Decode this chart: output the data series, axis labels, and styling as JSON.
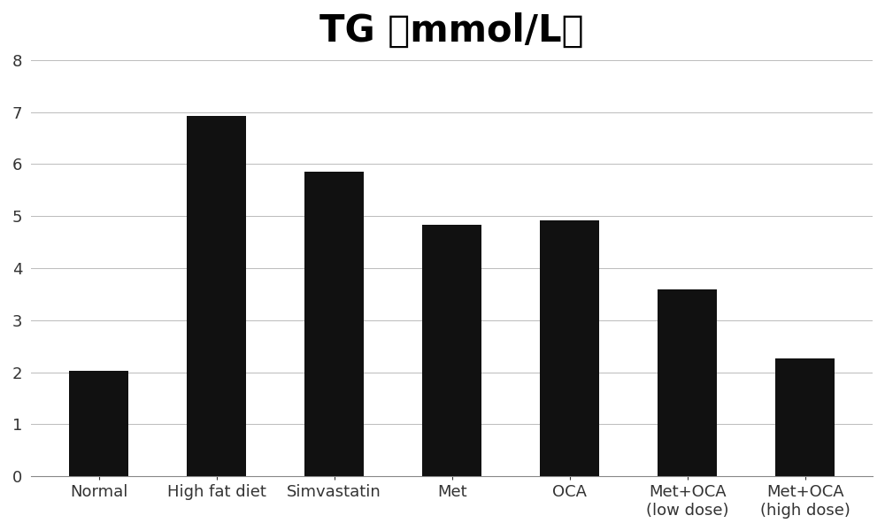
{
  "title": "TG （mmol/L）",
  "categories": [
    "Normal",
    "High fat diet",
    "Simvastatin",
    "Met",
    "OCA",
    "Met+OCA\n(low dose)",
    "Met+OCA\n(high dose)"
  ],
  "values": [
    2.02,
    6.93,
    5.85,
    4.83,
    4.92,
    3.6,
    2.27
  ],
  "bar_color": "#111111",
  "ylim": [
    0,
    8
  ],
  "yticks": [
    0,
    1,
    2,
    3,
    4,
    5,
    6,
    7,
    8
  ],
  "title_fontsize": 30,
  "tick_fontsize": 13,
  "background_color": "#ffffff",
  "grid_color": "#bbbbbb",
  "bar_width": 0.5
}
